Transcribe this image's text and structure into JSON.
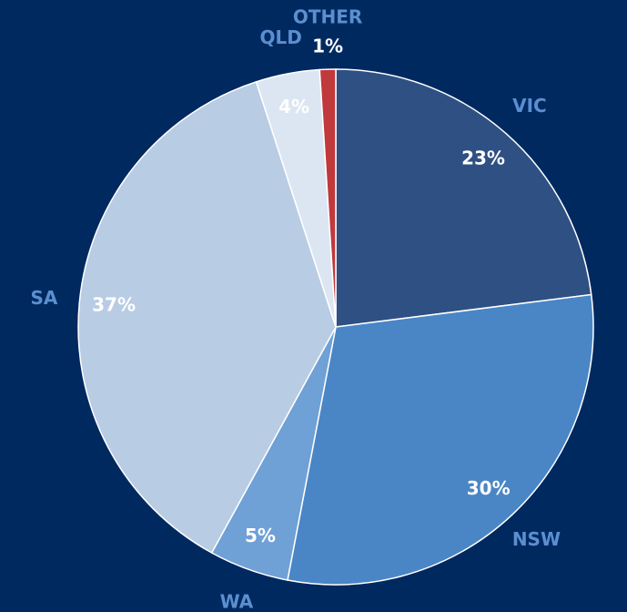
{
  "chart_data": {
    "type": "pie",
    "categories": [
      "VIC",
      "NSW",
      "WA",
      "SA",
      "QLD",
      "OTHER"
    ],
    "values": [
      23,
      30,
      5,
      37,
      4,
      1
    ],
    "value_labels": [
      "23%",
      "30%",
      "5%",
      "37%",
      "4%",
      "1%"
    ],
    "colors": [
      "#2f5083",
      "#4a86c5",
      "#6fa0d6",
      "#b8cce4",
      "#dce6f2",
      "#c0393b"
    ],
    "category_label_color": "#5b8fd0",
    "value_label_color": "#ffffff"
  }
}
